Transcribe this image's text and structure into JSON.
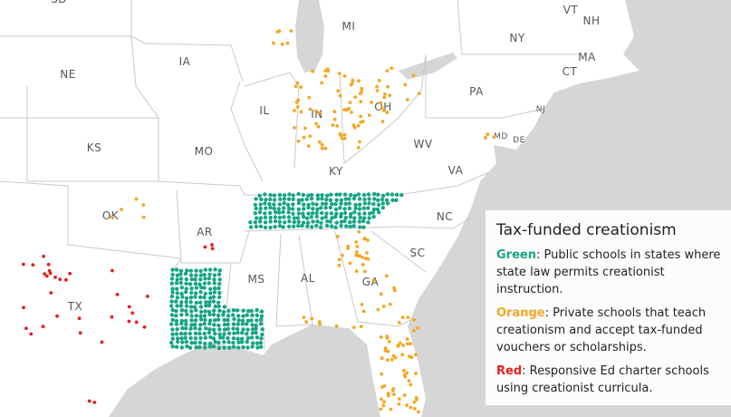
{
  "map": {
    "states": [
      "SD",
      "MI",
      "VT",
      "NH",
      "NY",
      "MA",
      "CT",
      "NJ",
      "IA",
      "NE",
      "PA",
      "IL",
      "IN",
      "OH",
      "MD",
      "DE",
      "KS",
      "MO",
      "WV",
      "KY",
      "VA",
      "OK",
      "AR",
      "NC",
      "SC",
      "MS",
      "AL",
      "GA",
      "TX"
    ]
  },
  "legend": {
    "title": "Tax-funded creationism",
    "items": [
      {
        "key": "Green",
        "color": "#16a585",
        "text": ": Public schools in states where state law permits creationist instruction."
      },
      {
        "key": "Orange",
        "color": "#f5a623",
        "text": ": Private schools that teach creationism and accept tax-funded vouchers or scholarships."
      },
      {
        "key": "Red",
        "color": "#e3201c",
        "text": ": Responsive Ed charter schools using creationist curricula."
      }
    ]
  }
}
